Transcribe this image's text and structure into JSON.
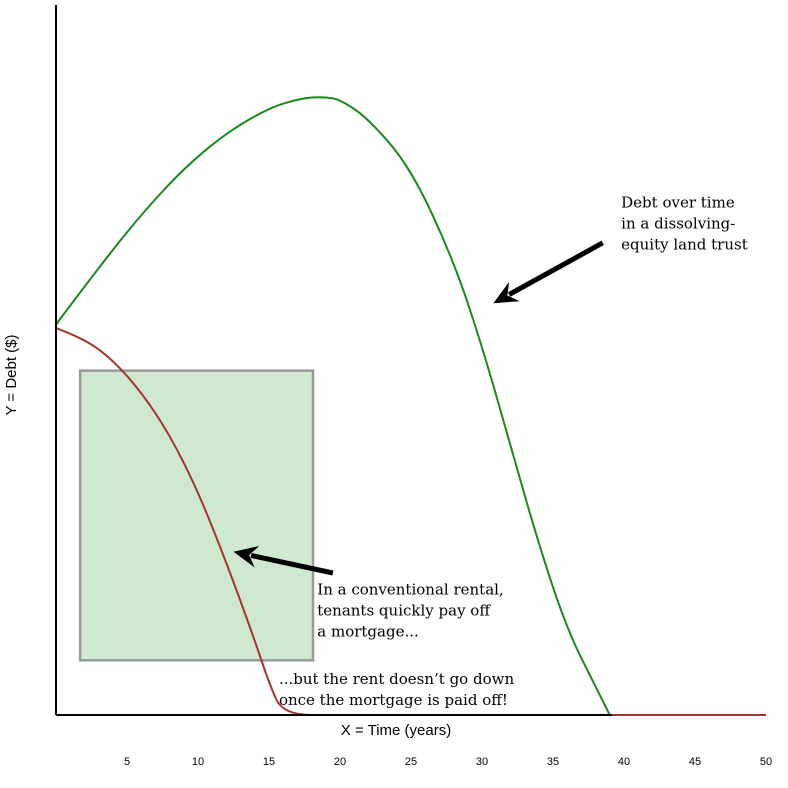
{
  "chart_data": {
    "type": "line",
    "xlabel": "X = Time (years)",
    "ylabel": "Y = Debt ($)",
    "xlim": [
      0,
      50
    ],
    "ylim": [
      0,
      100
    ],
    "x_ticks": [
      5,
      10,
      15,
      20,
      25,
      30,
      35,
      40,
      45,
      50
    ],
    "grid": false,
    "series": [
      {
        "color": "#1a8a1a",
        "x": [
          0,
          3,
          6,
          9,
          12,
          15,
          17,
          18,
          19,
          20,
          22,
          25,
          28,
          30,
          32,
          34,
          36,
          38,
          39
        ],
        "y": [
          55,
          63,
          70.5,
          77,
          82,
          85.5,
          86.7,
          87,
          87,
          86.7,
          84,
          77,
          64,
          52,
          38,
          24,
          12,
          4,
          0
        ]
      },
      {
        "color": "#a83232",
        "x": [
          0,
          2,
          4,
          6,
          8,
          10,
          12,
          14,
          15,
          16,
          20,
          25,
          30,
          35,
          40,
          45,
          50
        ],
        "y": [
          54.5,
          53,
          50,
          45.5,
          39.5,
          31.5,
          21.5,
          10.5,
          4.5,
          0,
          0,
          0,
          0,
          0,
          0,
          0,
          0
        ]
      }
    ],
    "highlight_box": {
      "x_range": [
        1.7,
        18.1
      ],
      "y_range": [
        7.7,
        48.5
      ],
      "fill": "#cfe8d0",
      "stroke": "#999999"
    },
    "annotations": [
      {
        "lines": [
          "Debt over time",
          "in a dissolving-",
          "equity land trust"
        ],
        "text_at": [
          39.8,
          71.5
        ],
        "arrow_from": [
          38.5,
          66.5
        ],
        "arrow_to": [
          30.8,
          58
        ]
      },
      {
        "lines": [
          "In a conventional rental,",
          "tenants quickly pay off",
          "a mortgage..."
        ],
        "text_at": [
          18.4,
          17
        ],
        "arrow_from": [
          19.5,
          20
        ],
        "arrow_to": [
          12.5,
          23
        ]
      },
      {
        "lines": [
          "...but the rent doesn’t go down",
          "once the mortgage is paid off!"
        ],
        "text_at": [
          15.7,
          4.4
        ],
        "arrow_from": null,
        "arrow_to": null
      }
    ]
  }
}
